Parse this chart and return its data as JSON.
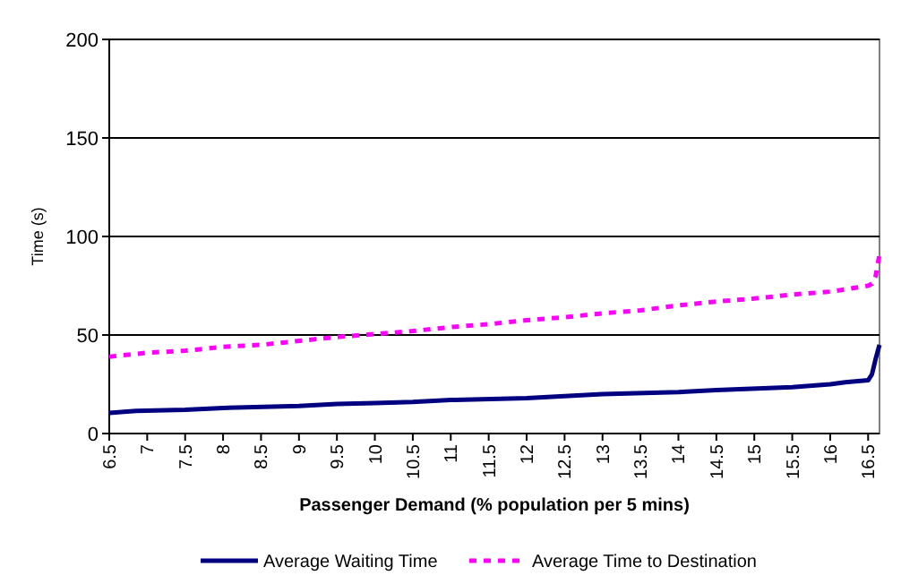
{
  "chart_data": {
    "type": "line",
    "xlabel": "Passenger Demand (% population per 5 mins)",
    "ylabel": "Time (s)",
    "xlim": [
      6.5,
      16.65
    ],
    "xticks": [
      6.5,
      7,
      7.5,
      8,
      8.5,
      9,
      9.5,
      10,
      10.5,
      11,
      11.5,
      12,
      12.5,
      13,
      13.5,
      14,
      14.5,
      15,
      15.5,
      16,
      16.5
    ],
    "ylim": [
      0,
      200
    ],
    "yticks": [
      0,
      50,
      100,
      150,
      200
    ],
    "grid": "y",
    "legend": "bottom",
    "x": [
      6.5,
      6.85,
      7.5,
      8,
      9,
      9.5,
      10,
      10.5,
      11,
      12,
      12.5,
      13,
      14,
      14.5,
      15.5,
      16,
      16.2,
      16.5,
      16.55,
      16.6,
      16.65
    ],
    "series": [
      {
        "name": "Average Waiting Time",
        "color": "#000080",
        "line_style": "solid",
        "values": [
          10.5,
          11.5,
          12,
          13,
          14,
          15,
          15.5,
          16,
          17,
          18,
          19,
          20,
          21,
          22,
          23.5,
          25,
          26,
          27,
          30,
          38,
          45
        ]
      },
      {
        "name": "Average Time to Destination",
        "color": "#ff00ff",
        "line_style": "dashed",
        "x": [
          6.5,
          7,
          7.5,
          8,
          8.5,
          9,
          9.5,
          10,
          10.5,
          11,
          11.5,
          12,
          12.5,
          13,
          13.5,
          14,
          14.5,
          15,
          15.5,
          16,
          16.5,
          16.55,
          16.6,
          16.65
        ],
        "values": [
          39,
          41,
          42,
          44,
          45,
          47,
          49,
          50.5,
          52,
          54,
          55.5,
          57.5,
          59,
          61,
          62.5,
          65,
          67,
          68.5,
          70.5,
          72,
          75,
          76,
          80,
          91
        ]
      }
    ]
  }
}
